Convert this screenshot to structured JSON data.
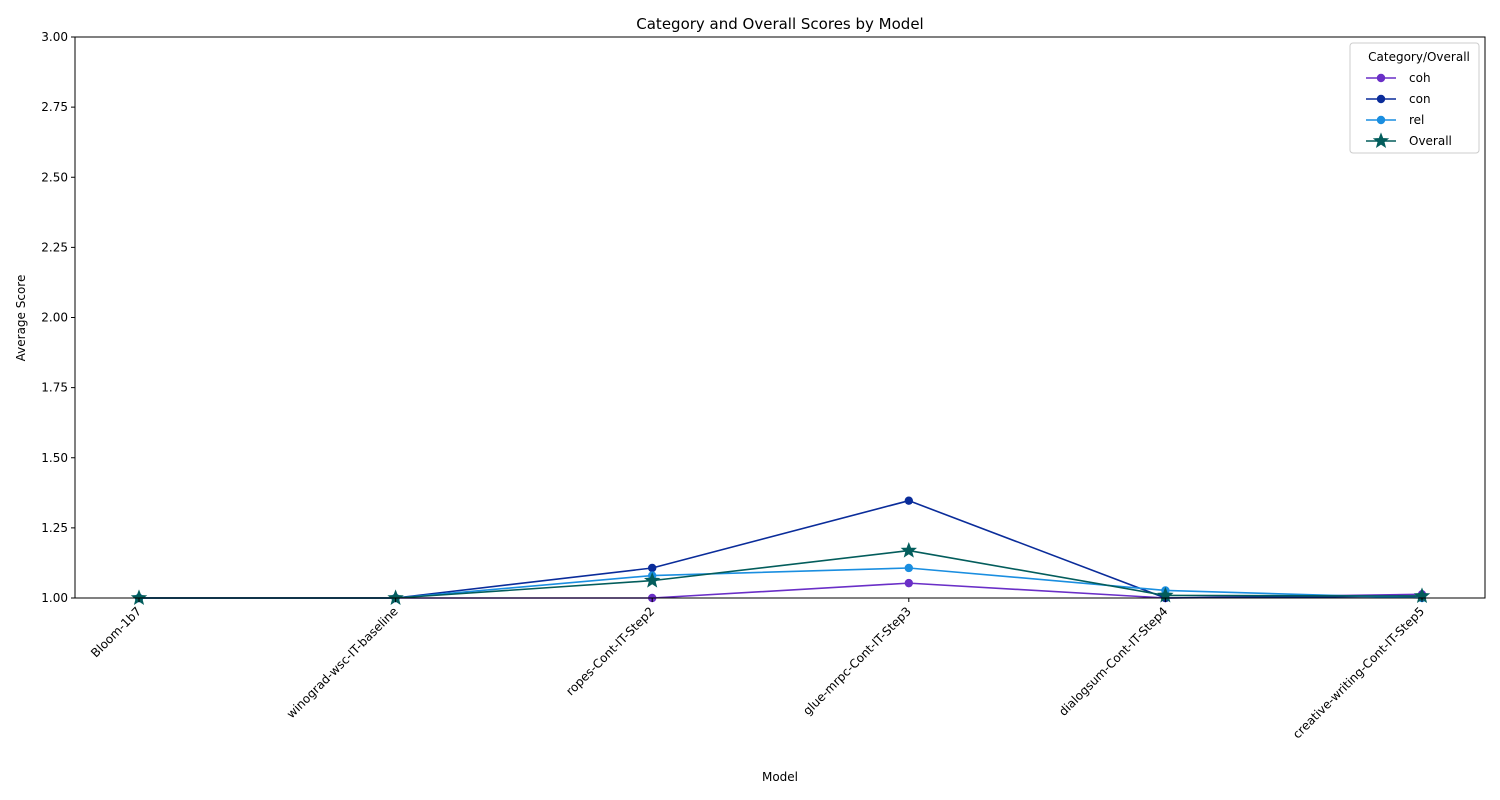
{
  "chart_data": {
    "type": "line",
    "title": "Category and Overall Scores by Model",
    "xlabel": "Model",
    "ylabel": "Average Score",
    "ylim": [
      1.0,
      3.0
    ],
    "yticks": [
      "1.00",
      "1.25",
      "1.50",
      "1.75",
      "2.00",
      "2.25",
      "2.50",
      "2.75",
      "3.00"
    ],
    "grid": false,
    "legend_title": "Category/Overall",
    "legend_position": "top-right",
    "categories": [
      "Bloom-1b7",
      "winograd-wsc-IT-baseline",
      "ropes-Cont-IT-Step2",
      "glue-mrpc-Cont-IT-Step3",
      "dialogsum-Cont-IT-Step4",
      "creative-writing-Cont-IT-Step5"
    ],
    "series": [
      {
        "name": "coh",
        "color": "#6a2fc7",
        "marker": "circle",
        "values": [
          1.0,
          1.0,
          1.0,
          1.053,
          1.0,
          1.013
        ]
      },
      {
        "name": "con",
        "color": "#0a2c9a",
        "marker": "circle",
        "values": [
          1.0,
          1.0,
          1.107,
          1.347,
          1.0,
          1.007
        ]
      },
      {
        "name": "rel",
        "color": "#1a8ee0",
        "marker": "circle",
        "values": [
          1.0,
          1.0,
          1.08,
          1.107,
          1.027,
          1.0
        ]
      },
      {
        "name": "Overall",
        "color": "#035d5c",
        "marker": "star",
        "values": [
          1.0,
          1.0,
          1.062,
          1.169,
          1.009,
          1.007
        ]
      }
    ]
  }
}
